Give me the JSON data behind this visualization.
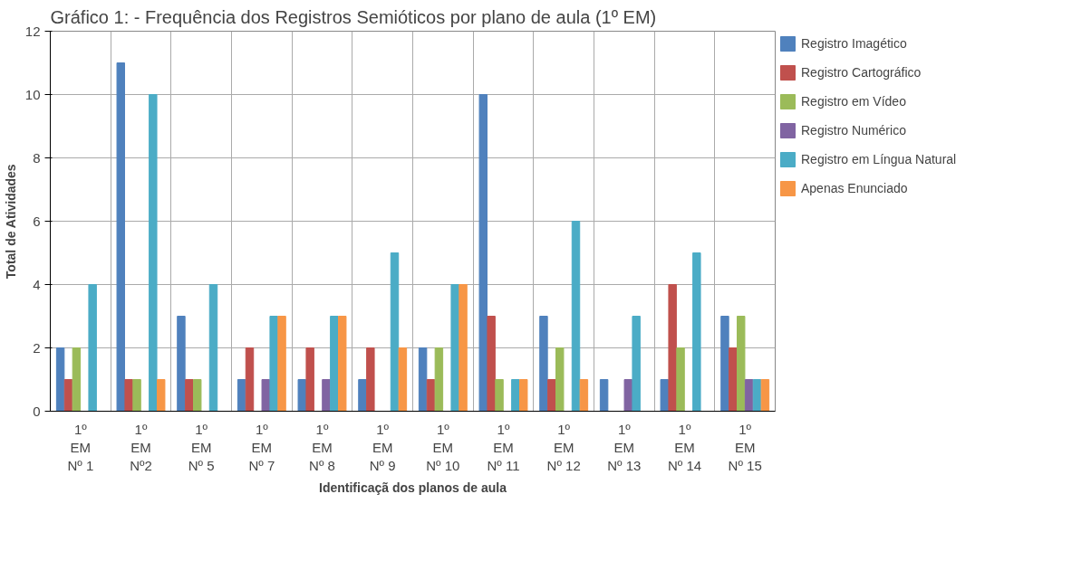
{
  "chart_data": {
    "type": "bar",
    "title": "Gráfico 1: - Frequência dos Registros Semióticos por plano de aula (1º EM)",
    "xlabel": "Identificaçã dos planos de aula",
    "ylabel": "Total de Atividades",
    "categories": [
      "1º\nEM\nNº 1",
      "1º\nEM\nNº2",
      "1º\nEM\nNº 5",
      "1º\nEM\nNº 7",
      "1º\nEM\nNº 8",
      "1º\nEM\nNº 9",
      "1º\nEM\nNº 10",
      "1º\nEM\nNº 11",
      "1º\nEM\nNº 12",
      "1º\nEM\nNº 13",
      "1º\nEM\nNº 14",
      "1º\nEM\nNº 15"
    ],
    "series": [
      {
        "name": "Registro Imagético",
        "color": "#4f81bd",
        "values": [
          2,
          11,
          3,
          1,
          1,
          1,
          2,
          10,
          3,
          1,
          1,
          3
        ]
      },
      {
        "name": "Registro Cartográfico",
        "color": "#c0504d",
        "values": [
          1,
          1,
          1,
          2,
          2,
          2,
          1,
          3,
          1,
          0,
          4,
          2
        ]
      },
      {
        "name": "Registro em Vídeo",
        "color": "#9bbb59",
        "values": [
          2,
          1,
          1,
          0,
          0,
          0,
          2,
          1,
          2,
          0,
          2,
          3
        ]
      },
      {
        "name": "Registro Numérico",
        "color": "#8064a2",
        "values": [
          0,
          0,
          0,
          1,
          1,
          0,
          0,
          0,
          0,
          1,
          0,
          1
        ]
      },
      {
        "name": "Registro em Língua Natural",
        "color": "#4bacc6",
        "values": [
          4,
          10,
          4,
          3,
          3,
          5,
          4,
          1,
          6,
          3,
          5,
          1
        ]
      },
      {
        "name": "Apenas Enunciado",
        "color": "#f79646",
        "values": [
          0,
          1,
          0,
          3,
          3,
          2,
          4,
          1,
          1,
          0,
          0,
          1
        ]
      }
    ],
    "ylim": [
      0,
      12
    ],
    "yticks": [
      0,
      2,
      4,
      6,
      8,
      10,
      12
    ],
    "grid": true,
    "legend": "right"
  }
}
